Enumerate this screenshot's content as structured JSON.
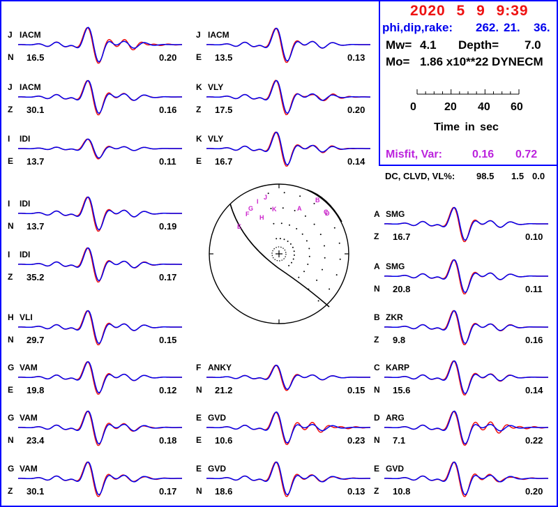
{
  "event": {
    "datetime": "2020 5 9 9:39",
    "phi_dip_rake_label": "phi,dip,rake:",
    "phi": "262.",
    "dip": "21.",
    "rake": "36.",
    "mw_label": "Mw=",
    "mw": "4.1",
    "depth_label": "Depth=",
    "depth": "7.0",
    "mo_label": "Mo=",
    "mo": "1.86 x10**22 DYNECM",
    "misfit_label": "Misfit, Var:",
    "misfit": "0.16",
    "var": "0.72",
    "dc_clvd_vl_label": "DC, CLVD, VL%:",
    "dc": "98.5",
    "clvd": "1.5",
    "vl": "0.0"
  },
  "time_scale": {
    "ticks": [
      "0",
      "20",
      "40",
      "60"
    ],
    "label": "Time in sec",
    "minor_tick_seconds": 5
  },
  "colors": {
    "observed": "#ee1111",
    "synthetic": "#0000ee",
    "frame": "#0000ff",
    "station_labels": "#cc22cc"
  },
  "panels": [
    {
      "letter": "J",
      "station": "IACM",
      "comp": "N",
      "distance": "16.5",
      "value": "0.20",
      "amp": 1.0,
      "obs_shift": 0.25
    },
    {
      "letter": "J",
      "station": "IACM",
      "comp": "Z",
      "distance": "30.1",
      "value": "0.16",
      "amp": 0.95,
      "obs_shift": 0.05
    },
    {
      "letter": "I",
      "station": "IDI",
      "comp": "E",
      "distance": "13.7",
      "value": "0.11",
      "amp": 0.55,
      "obs_shift": 0.0
    },
    {
      "letter": "I",
      "station": "IDI",
      "comp": "N",
      "distance": "13.7",
      "value": "0.19",
      "amp": 0.95,
      "obs_shift": 0.0
    },
    {
      "letter": "I",
      "station": "IDI",
      "comp": "Z",
      "distance": "35.2",
      "value": "0.17",
      "amp": 0.95,
      "obs_shift": 0.05
    },
    {
      "letter": "H",
      "station": "VLI",
      "comp": "N",
      "distance": "29.7",
      "value": "0.15",
      "amp": 0.95,
      "obs_shift": 0.0
    },
    {
      "letter": "G",
      "station": "VAM",
      "comp": "E",
      "distance": "19.8",
      "value": "0.12",
      "amp": 0.9,
      "obs_shift": 0.0
    },
    {
      "letter": "G",
      "station": "VAM",
      "comp": "N",
      "distance": "23.4",
      "value": "0.18",
      "amp": 0.95,
      "obs_shift": 0.1
    },
    {
      "letter": "G",
      "station": "VAM",
      "comp": "Z",
      "distance": "30.1",
      "value": "0.17",
      "amp": 0.95,
      "obs_shift": 0.1
    },
    {
      "letter": "J",
      "station": "IACM",
      "comp": "E",
      "distance": "13.5",
      "value": "0.13",
      "amp": 0.95,
      "obs_shift": 0.0
    },
    {
      "letter": "K",
      "station": "VLY",
      "comp": "Z",
      "distance": "17.5",
      "value": "0.20",
      "amp": 0.95,
      "obs_shift": 0.15
    },
    {
      "letter": "K",
      "station": "VLY",
      "comp": "E",
      "distance": "16.7",
      "value": "0.14",
      "amp": 0.95,
      "obs_shift": 0.1
    },
    {
      "letter": "F",
      "station": "ANKY",
      "comp": "N",
      "distance": "21.2",
      "value": "0.15",
      "amp": 0.7,
      "obs_shift": 0.0
    },
    {
      "letter": "E",
      "station": "GVD",
      "comp": "E",
      "distance": "10.6",
      "value": "0.23",
      "amp": 0.9,
      "obs_shift": 0.3
    },
    {
      "letter": "E",
      "station": "GVD",
      "comp": "N",
      "distance": "18.6",
      "value": "0.13",
      "amp": 0.95,
      "obs_shift": 0.1
    },
    {
      "letter": "A",
      "station": "SMG",
      "comp": "Z",
      "distance": "16.7",
      "value": "0.10",
      "amp": 0.95,
      "obs_shift": 0.0
    },
    {
      "letter": "A",
      "station": "SMG",
      "comp": "N",
      "distance": "20.8",
      "value": "0.11",
      "amp": 0.95,
      "obs_shift": 0.0
    },
    {
      "letter": "B",
      "station": "ZKR",
      "comp": "Z",
      "distance": "9.8",
      "value": "0.16",
      "amp": 0.95,
      "obs_shift": 0.05
    },
    {
      "letter": "C",
      "station": "KARP",
      "comp": "N",
      "distance": "15.6",
      "value": "0.14",
      "amp": 0.95,
      "obs_shift": 0.05
    },
    {
      "letter": "D",
      "station": "ARG",
      "comp": "N",
      "distance": "7.1",
      "value": "0.22",
      "amp": 0.95,
      "obs_shift": 0.35
    },
    {
      "letter": "E",
      "station": "GVD",
      "comp": "Z",
      "distance": "10.8",
      "value": "0.20",
      "amp": 0.95,
      "obs_shift": 0.15
    }
  ],
  "beachball_stations": [
    "A",
    "B",
    "C",
    "D",
    "E",
    "F",
    "G",
    "H",
    "I",
    "J",
    "K"
  ]
}
